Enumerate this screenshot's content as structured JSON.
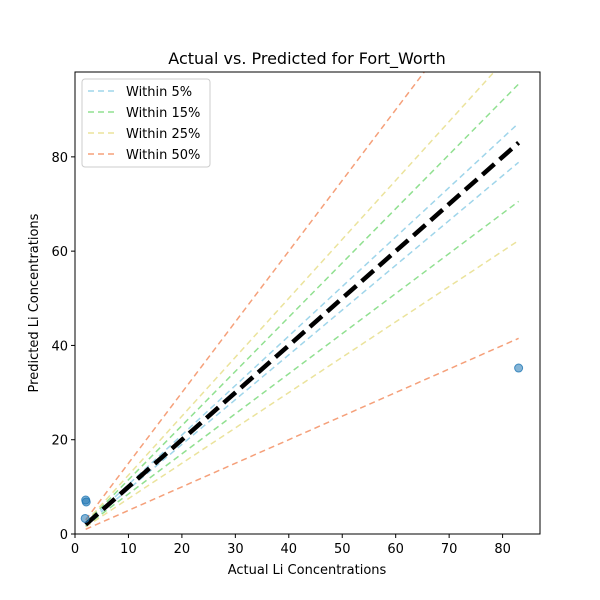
{
  "chart_data": {
    "type": "scatter",
    "title": "Actual vs. Predicted for Fort_Worth",
    "xlabel": "Actual Li Concentrations",
    "ylabel": "Predicted Li Concentrations",
    "xlim": [
      0,
      87
    ],
    "ylim": [
      0,
      98
    ],
    "xticks": [
      0,
      10,
      20,
      30,
      40,
      50,
      60,
      70,
      80
    ],
    "yticks": [
      0,
      20,
      40,
      60,
      80
    ],
    "grid": false,
    "legend_position": "top-left",
    "points": {
      "color": "#1f77b4",
      "x": [
        2.0,
        2.1,
        1.9,
        83.0
      ],
      "y": [
        7.2,
        6.8,
        3.3,
        35.2
      ]
    },
    "identity_line": {
      "x": [
        2,
        83
      ],
      "color": "#000000",
      "style": "dashed"
    },
    "bands": [
      {
        "name": "Within 5%",
        "pct": 0.05,
        "color": "#9fd5ea"
      },
      {
        "name": "Within 15%",
        "pct": 0.15,
        "color": "#90e090"
      },
      {
        "name": "Within 25%",
        "pct": 0.25,
        "color": "#ebe39c"
      },
      {
        "name": "Within 50%",
        "pct": 0.5,
        "color": "#f5a07a"
      }
    ]
  }
}
